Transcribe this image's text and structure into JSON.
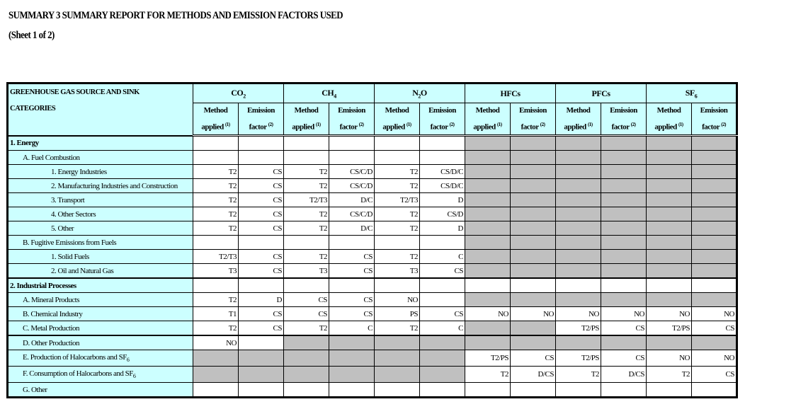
{
  "title": "SUMMARY 3   SUMMARY REPORT FOR  METHODS AND EMISSION FACTORS USED",
  "subtitle": "(Sheet 1 of 2)",
  "header": {
    "category_label_1": "GREENHOUSE GAS SOURCE AND SINK",
    "category_label_2": "CATEGORIES",
    "gases": [
      {
        "base": "CO",
        "sub": "2"
      },
      {
        "base": "CH",
        "sub": "4"
      },
      {
        "base": "N",
        "sub": "2",
        "tail": "O"
      },
      {
        "base": "HFCs",
        "sub": ""
      },
      {
        "base": "PFCs",
        "sub": ""
      },
      {
        "base": "SF",
        "sub": "6"
      }
    ],
    "method_1": "Method",
    "method_2": "applied",
    "method_note": "(1)",
    "ef_1": "Emission",
    "ef_2": "factor",
    "ef_note": "(2)"
  },
  "shade_color": "#c0c0c0",
  "label_bg": "#ccffff",
  "rows": [
    {
      "label": "1. Energy",
      "indent": 0,
      "bold": true,
      "section": true,
      "cells": [
        "",
        "",
        "",
        "",
        "",
        "",
        "",
        "",
        "",
        "",
        "",
        ""
      ],
      "shaded": [
        0,
        0,
        0,
        0,
        0,
        0,
        1,
        1,
        1,
        1,
        1,
        1
      ]
    },
    {
      "label": "A. Fuel Combustion",
      "indent": 1,
      "cells": [
        "",
        "",
        "",
        "",
        "",
        "",
        "",
        "",
        "",
        "",
        "",
        ""
      ],
      "shaded": [
        0,
        0,
        0,
        0,
        0,
        0,
        1,
        1,
        1,
        1,
        1,
        1
      ]
    },
    {
      "label": "1.  Energy Industries",
      "indent": 2,
      "cells": [
        "T2",
        "CS",
        "T2",
        "CS/C/D",
        "T2",
        "CS/D/C",
        "",
        "",
        "",
        "",
        "",
        ""
      ],
      "shaded": [
        0,
        0,
        0,
        0,
        0,
        0,
        1,
        1,
        1,
        1,
        1,
        1
      ]
    },
    {
      "label": "2.  Manufacturing Industries and Construction",
      "indent": 2,
      "cells": [
        "T2",
        "CS",
        "T2",
        "CS/C/D",
        "T2",
        "CS/D/C",
        "",
        "",
        "",
        "",
        "",
        ""
      ],
      "shaded": [
        0,
        0,
        0,
        0,
        0,
        0,
        1,
        1,
        1,
        1,
        1,
        1
      ]
    },
    {
      "label": "3.  Transport",
      "indent": 2,
      "cells": [
        "T2",
        "CS",
        "T2/T3",
        "D/C",
        "T2/T3",
        "D",
        "",
        "",
        "",
        "",
        "",
        ""
      ],
      "shaded": [
        0,
        0,
        0,
        0,
        0,
        0,
        1,
        1,
        1,
        1,
        1,
        1
      ]
    },
    {
      "label": "4.  Other Sectors",
      "indent": 2,
      "cells": [
        "T2",
        "CS",
        "T2",
        "CS/C/D",
        "T2",
        "CS/D",
        "",
        "",
        "",
        "",
        "",
        ""
      ],
      "shaded": [
        0,
        0,
        0,
        0,
        0,
        0,
        1,
        1,
        1,
        1,
        1,
        1
      ]
    },
    {
      "label": "5.  Other",
      "indent": 2,
      "cells": [
        "T2",
        "CS",
        "T2",
        "D/C",
        "T2",
        "D",
        "",
        "",
        "",
        "",
        "",
        ""
      ],
      "shaded": [
        0,
        0,
        0,
        0,
        0,
        0,
        1,
        1,
        1,
        1,
        1,
        1
      ]
    },
    {
      "label": "B. Fugitive Emissions from Fuels",
      "indent": 1,
      "cells": [
        "",
        "",
        "",
        "",
        "",
        "",
        "",
        "",
        "",
        "",
        "",
        ""
      ],
      "shaded": [
        0,
        0,
        0,
        0,
        0,
        0,
        1,
        1,
        1,
        1,
        1,
        1
      ]
    },
    {
      "label": "1.  Solid Fuels",
      "indent": 2,
      "cells": [
        "T2/T3",
        "CS",
        "T2",
        "CS",
        "T2",
        "C",
        "",
        "",
        "",
        "",
        "",
        ""
      ],
      "shaded": [
        0,
        0,
        0,
        0,
        0,
        0,
        1,
        1,
        1,
        1,
        1,
        1
      ]
    },
    {
      "label": "2.  Oil and Natural Gas",
      "indent": 2,
      "cells": [
        "T3",
        "CS",
        "T3",
        "CS",
        "T3",
        "CS",
        "",
        "",
        "",
        "",
        "",
        ""
      ],
      "shaded": [
        0,
        0,
        0,
        0,
        0,
        0,
        1,
        1,
        1,
        1,
        1,
        1
      ]
    },
    {
      "label": "2.  Industrial Processes",
      "indent": 0,
      "bold": true,
      "section": true,
      "cells": [
        "",
        "",
        "",
        "",
        "",
        "",
        "",
        "",
        "",
        "",
        "",
        ""
      ],
      "shaded": [
        0,
        0,
        0,
        0,
        0,
        0,
        0,
        0,
        0,
        0,
        0,
        0
      ]
    },
    {
      "label": "A.  Mineral Products",
      "indent": 1,
      "cells": [
        "T2",
        "D",
        "CS",
        "CS",
        "NO",
        "",
        "",
        "",
        "",
        "",
        "",
        ""
      ],
      "shaded": [
        0,
        0,
        0,
        0,
        0,
        0,
        1,
        1,
        1,
        1,
        1,
        1
      ]
    },
    {
      "label": "B.  Chemical Industry",
      "indent": 1,
      "cells": [
        "T1",
        "CS",
        "CS",
        "CS",
        "PS",
        "CS",
        "NO",
        "NO",
        "NO",
        "NO",
        "NO",
        "NO"
      ],
      "shaded": [
        0,
        0,
        0,
        0,
        0,
        0,
        0,
        0,
        0,
        0,
        0,
        0
      ]
    },
    {
      "label": "C.  Metal Production",
      "indent": 1,
      "cells": [
        "T2",
        "CS",
        "T2",
        "C",
        "T2",
        "C",
        "",
        "",
        "T2/PS",
        "CS",
        "T2/PS",
        "CS"
      ],
      "shaded": [
        0,
        0,
        0,
        0,
        0,
        0,
        1,
        1,
        0,
        0,
        0,
        0
      ]
    },
    {
      "label": "D.  Other Production",
      "indent": 1,
      "section": true,
      "cells": [
        "NO",
        "",
        "",
        "",
        "",
        "",
        "",
        "",
        "",
        "",
        "",
        ""
      ],
      "shaded": [
        0,
        0,
        1,
        1,
        1,
        1,
        1,
        1,
        1,
        1,
        1,
        1
      ]
    },
    {
      "label": "E.  Production of Halocarbons and SF",
      "label_sub": "6",
      "indent": 1,
      "tall": true,
      "cells": [
        "",
        "",
        "",
        "",
        "",
        "",
        "T2/PS",
        "CS",
        "T2/PS",
        "CS",
        "NO",
        "NO"
      ],
      "shaded": [
        1,
        1,
        1,
        1,
        1,
        1,
        0,
        0,
        0,
        0,
        0,
        0
      ]
    },
    {
      "label": "F.  Consumption of Halocarbons and  SF",
      "label_sub": "6",
      "indent": 1,
      "tall": true,
      "cells": [
        "",
        "",
        "",
        "",
        "",
        "",
        "T2",
        "D/CS",
        "T2",
        "D/CS",
        "T2",
        "CS"
      ],
      "shaded": [
        1,
        1,
        1,
        1,
        1,
        1,
        0,
        0,
        0,
        0,
        0,
        0
      ]
    },
    {
      "label": "G.  Other",
      "indent": 1,
      "cells": [
        "",
        "",
        "",
        "",
        "",
        "",
        "",
        "",
        "",
        "",
        "",
        ""
      ],
      "shaded": [
        0,
        0,
        0,
        0,
        0,
        0,
        0,
        0,
        0,
        0,
        0,
        0
      ]
    }
  ]
}
